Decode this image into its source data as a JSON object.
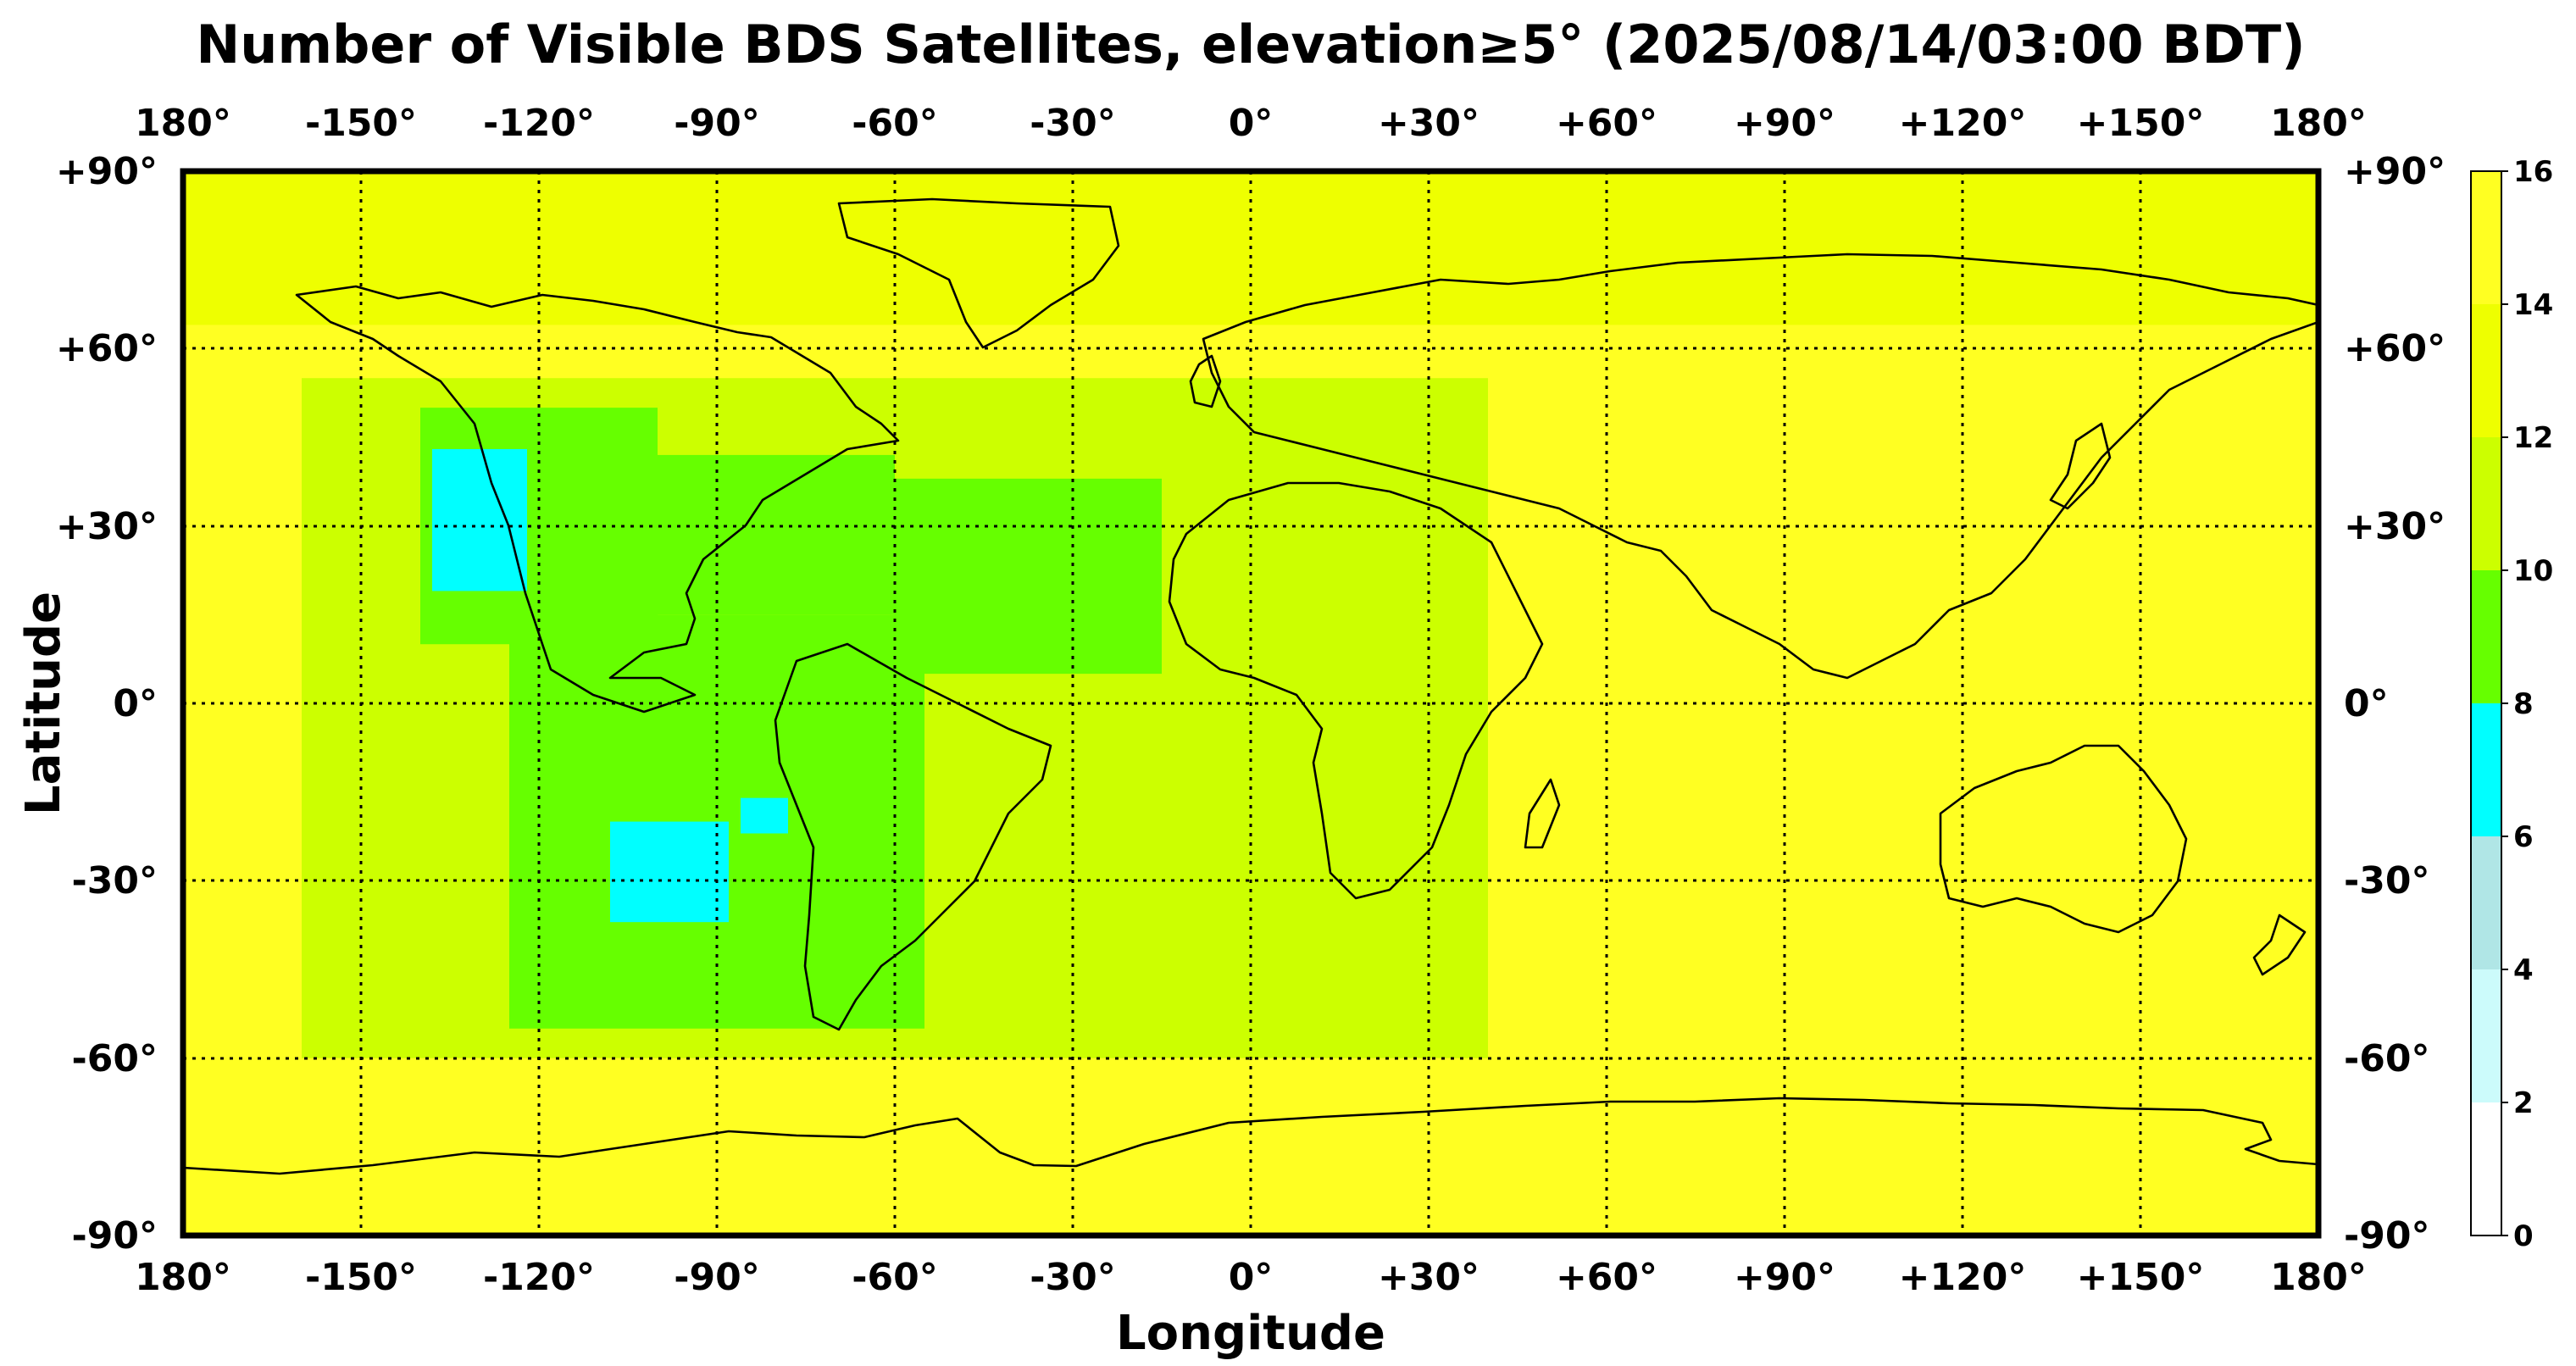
{
  "title": "Number of Visible BDS Satellites, elevation≥5° (2025/08/14/03:00 BDT)",
  "xlabel": "Longitude",
  "ylabel": "Latitude",
  "lon_ticks": [
    "180°",
    "-150°",
    "-120°",
    "-90°",
    "-60°",
    "-30°",
    "0°",
    "+30°",
    "+60°",
    "+90°",
    "+120°",
    "+150°",
    "180°"
  ],
  "lat_ticks": [
    "+90°",
    "+60°",
    "+30°",
    "0°",
    "-30°",
    "-60°",
    "-90°"
  ],
  "colorbar": {
    "ticks": [
      "0",
      "2",
      "4",
      "6",
      "8",
      "10",
      "12",
      "14",
      "16"
    ],
    "colors": [
      "#ffffff",
      "#ccfbfb",
      "#b0e6e6",
      "#00ffff",
      "#66ff00",
      "#ccff00",
      "#eeff00",
      "#ffff22"
    ]
  },
  "chart_data": {
    "type": "heatmap",
    "title": "Number of Visible BDS Satellites, elevation≥5° (2025/08/14/03:00 BDT)",
    "xlabel": "Longitude",
    "ylabel": "Latitude",
    "xlim": [
      -180,
      180
    ],
    "ylim": [
      -90,
      90
    ],
    "x_ticks": [
      -180,
      -150,
      -120,
      -90,
      -60,
      -30,
      0,
      30,
      60,
      90,
      120,
      150,
      180
    ],
    "y_ticks": [
      90,
      60,
      30,
      0,
      -30,
      -60,
      -90
    ],
    "grid": true,
    "colorbar_levels": [
      0,
      2,
      4,
      6,
      8,
      10,
      12,
      14,
      16
    ],
    "regions": [
      {
        "level": "14-16",
        "lon": [
          -180,
          180
        ],
        "lat": [
          -90,
          90
        ]
      },
      {
        "level": "12-14",
        "lon": [
          -180,
          180
        ],
        "lat": [
          64,
          90
        ]
      },
      {
        "level": "10-12",
        "lon": [
          -160,
          40
        ],
        "lat": [
          -60,
          55
        ]
      },
      {
        "level": "8-10",
        "lon": [
          -140,
          -100
        ],
        "lat": [
          10,
          50
        ]
      },
      {
        "level": "8-10",
        "lon": [
          -125,
          -55
        ],
        "lat": [
          -55,
          15
        ]
      },
      {
        "level": "8-10",
        "lon": [
          -60,
          -15
        ],
        "lat": [
          5,
          38
        ]
      },
      {
        "level": "8-10",
        "lon": [
          -110,
          -60
        ],
        "lat": [
          15,
          42
        ]
      },
      {
        "level": "6-8",
        "lon": [
          -138,
          -122
        ],
        "lat": [
          19,
          43
        ]
      },
      {
        "level": "6-8",
        "lon": [
          -108,
          -88
        ],
        "lat": [
          -37,
          -20
        ]
      },
      {
        "level": "6-8",
        "lon": [
          -86,
          -78
        ],
        "lat": [
          -22,
          -16
        ]
      }
    ]
  }
}
